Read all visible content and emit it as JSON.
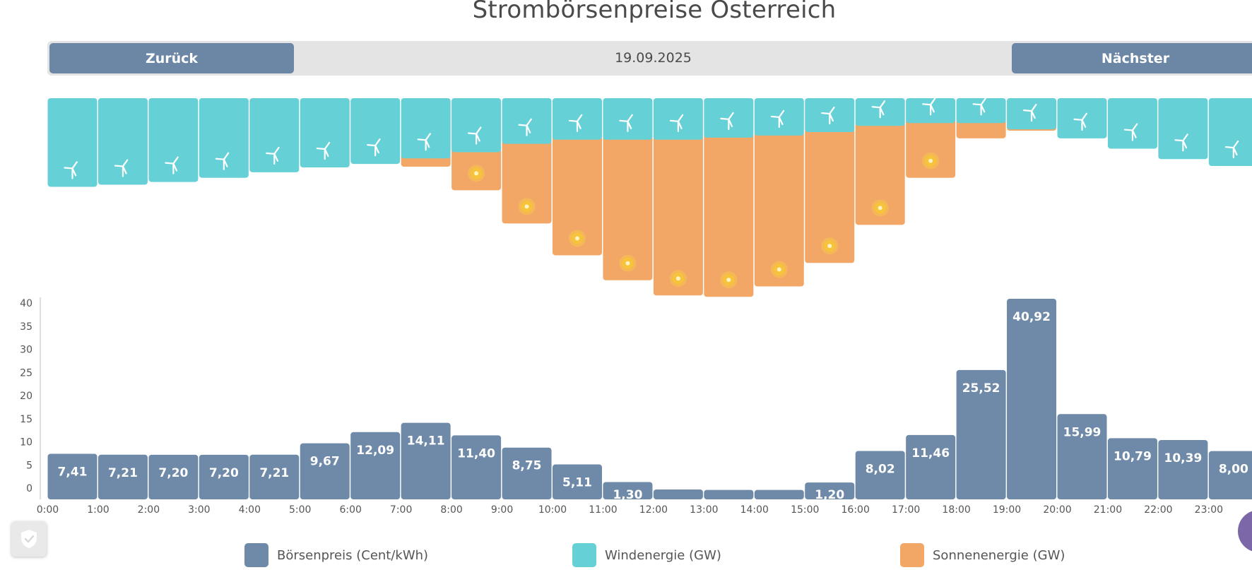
{
  "page": {
    "title": "Strombörsenpreise Österreich",
    "back_label": "Zurück",
    "next_label": "Nächster",
    "date": "19.09.2025"
  },
  "legend": [
    {
      "label": "Börsenpreis (Cent/kWh)",
      "color": "#6f8aa8"
    },
    {
      "label": "Windenergie (GW)",
      "color": "#66d0d7"
    },
    {
      "label": "Sonnenenergie (GW)",
      "color": "#f2a766"
    }
  ],
  "icons": {
    "wind": "wind-turbine-icon",
    "sun": "sun-icon",
    "privacy": "shield-check-icon"
  },
  "chart_data": {
    "type": "bar",
    "title": "Strombörsenpreise Österreich",
    "categories": [
      "0:00",
      "1:00",
      "2:00",
      "3:00",
      "4:00",
      "5:00",
      "6:00",
      "7:00",
      "8:00",
      "9:00",
      "10:00",
      "11:00",
      "12:00",
      "13:00",
      "14:00",
      "15:00",
      "16:00",
      "17:00",
      "18:00",
      "19:00",
      "20:00",
      "21:00",
      "22:00",
      "23:00"
    ],
    "ylim": [
      0,
      40
    ],
    "yticks": [
      0,
      5,
      10,
      15,
      20,
      25,
      30,
      35,
      40
    ],
    "grid": false,
    "legend_position": "bottom",
    "series": [
      {
        "name": "Börsenpreis (Cent/kWh)",
        "color": "#6f8aa8",
        "values": [
          7.41,
          7.21,
          7.2,
          7.2,
          7.21,
          9.67,
          12.09,
          14.11,
          11.4,
          8.75,
          5.11,
          1.3,
          -0.3,
          -0.4,
          -0.4,
          1.2,
          8.02,
          11.46,
          25.52,
          40.92,
          15.99,
          10.79,
          10.39,
          8.0
        ],
        "labels": [
          "7,41",
          "7,21",
          "7,20",
          "7,20",
          "7,21",
          "9,67",
          "12,09",
          "14,11",
          "11,40",
          "8,75",
          "5,11",
          "1,30",
          "",
          "",
          "",
          "1,20",
          "8,02",
          "11,46",
          "25,52",
          "40,92",
          "15,99",
          "10,79",
          "10,39",
          "8,00"
        ]
      },
      {
        "name": "Windenergie (GW)",
        "color": "#66d0d7",
        "values": [
          1.28,
          1.25,
          1.21,
          1.15,
          1.07,
          1.0,
          0.95,
          0.87,
          0.78,
          0.66,
          0.6,
          0.6,
          0.6,
          0.57,
          0.54,
          0.49,
          0.4,
          0.36,
          0.36,
          0.45,
          0.58,
          0.73,
          0.88,
          0.98
        ]
      },
      {
        "name": "Sonnenenergie (GW)",
        "color": "#f2a766",
        "values": [
          0,
          0,
          0,
          0,
          0,
          0,
          0,
          0.12,
          0.55,
          1.15,
          1.67,
          2.03,
          2.25,
          2.3,
          2.18,
          1.89,
          1.43,
          0.79,
          0.22,
          0.02,
          0,
          0,
          0,
          0
        ]
      }
    ]
  }
}
